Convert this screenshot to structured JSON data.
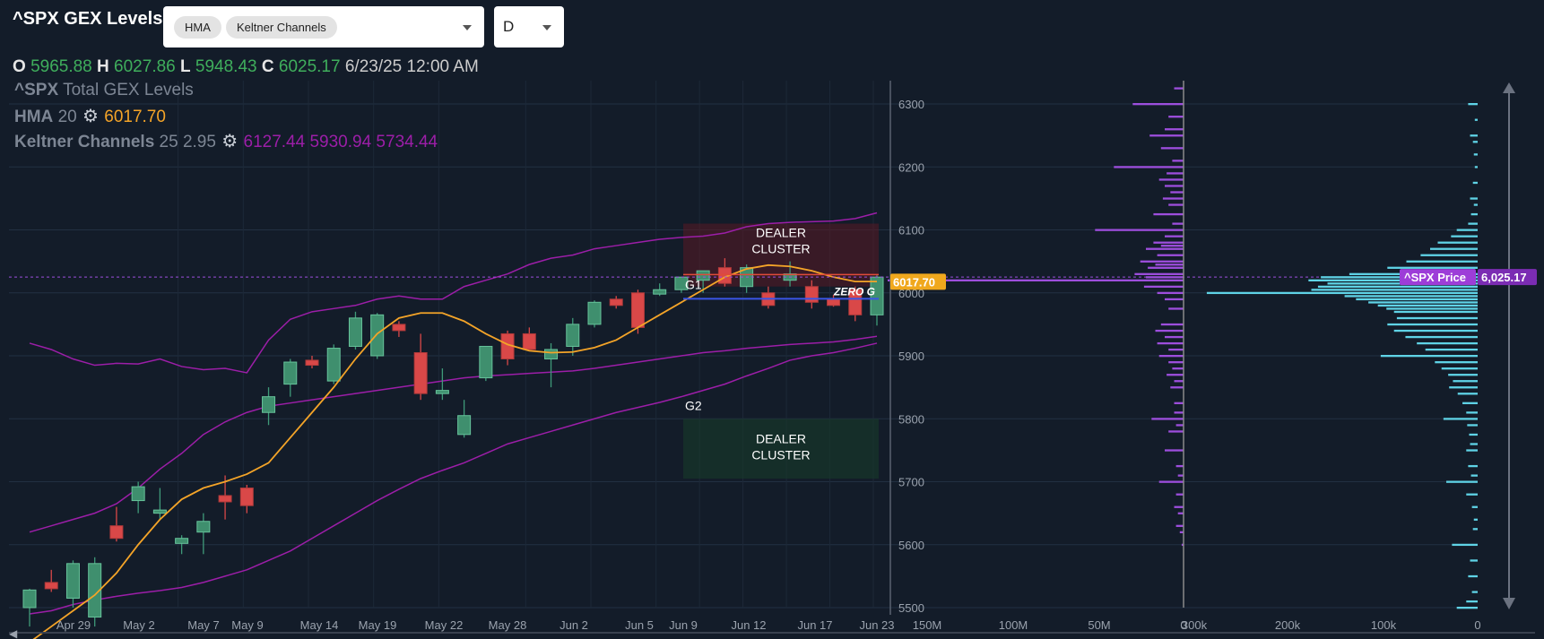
{
  "header": {
    "title": "^SPX GEX Levels",
    "indicators": [
      "HMA",
      "Keltner Channels"
    ],
    "timeframe": "D"
  },
  "ohlc": {
    "o_label": "O",
    "o": "5965.88",
    "h_label": "H",
    "h": "6027.86",
    "l_label": "L",
    "l": "5948.43",
    "c_label": "C",
    "c": "6025.17",
    "datetime": "6/23/25 12:00 AM"
  },
  "legend": {
    "line1_sym": "^SPX",
    "line1_text": "Total GEX Levels",
    "hma_label": "HMA",
    "hma_param": "20",
    "hma_value": "6017.70",
    "kc_label": "Keltner Channels",
    "kc_params": "25 2.95",
    "kc_values": "6127.44 5930.94 5734.44"
  },
  "colors": {
    "background": "#131c29",
    "up": "#3f8f6e",
    "down": "#d94848",
    "hma": "#f4a428",
    "keltner": "#9c1ea8",
    "gex_call": "#9d4edd",
    "gex_put": "#5fd3e6",
    "zero_gamma": "#3a55e6"
  },
  "annotations": {
    "dealer_cluster_upper_l1": "DEALER",
    "dealer_cluster_upper_l2": "CLUSTER",
    "dealer_cluster_lower_l1": "DEALER",
    "dealer_cluster_lower_l2": "CLUSTER",
    "g1": "G1",
    "g2": "G2",
    "zero_g": "ZERO G",
    "hma_tag": "6017.70",
    "price_tag_label": "^SPX Price",
    "price_tag_value": "6,025.17"
  },
  "chart_data": {
    "type": "candlestick",
    "title": "^SPX Total GEX Levels",
    "y_ticks": [
      5500,
      5600,
      5700,
      5800,
      5900,
      6000,
      6100,
      6200,
      6300
    ],
    "ylim": [
      5495,
      6335
    ],
    "x_ticks": [
      "Apr 29",
      "May 2",
      "May 7",
      "May 9",
      "May 14",
      "May 19",
      "May 22",
      "May 28",
      "Jun 2",
      "Jun 5",
      "Jun 9",
      "Jun 12",
      "Jun 17",
      "Jun 23"
    ],
    "candles": [
      {
        "o": 5500,
        "h": 5530,
        "l": 5470,
        "c": 5528
      },
      {
        "o": 5540,
        "h": 5560,
        "l": 5525,
        "c": 5530
      },
      {
        "o": 5515,
        "h": 5575,
        "l": 5500,
        "c": 5570
      },
      {
        "o": 5485,
        "h": 5580,
        "l": 5470,
        "c": 5570
      },
      {
        "o": 5630,
        "h": 5660,
        "l": 5605,
        "c": 5610
      },
      {
        "o": 5670,
        "h": 5700,
        "l": 5650,
        "c": 5692
      },
      {
        "o": 5650,
        "h": 5690,
        "l": 5640,
        "c": 5655
      },
      {
        "o": 5602,
        "h": 5615,
        "l": 5585,
        "c": 5610
      },
      {
        "o": 5620,
        "h": 5650,
        "l": 5585,
        "c": 5637
      },
      {
        "o": 5678,
        "h": 5710,
        "l": 5640,
        "c": 5668
      },
      {
        "o": 5690,
        "h": 5695,
        "l": 5650,
        "c": 5662
      },
      {
        "o": 5810,
        "h": 5850,
        "l": 5790,
        "c": 5835
      },
      {
        "o": 5855,
        "h": 5895,
        "l": 5835,
        "c": 5890
      },
      {
        "o": 5893,
        "h": 5900,
        "l": 5880,
        "c": 5885
      },
      {
        "o": 5860,
        "h": 5918,
        "l": 5855,
        "c": 5912
      },
      {
        "o": 5915,
        "h": 5970,
        "l": 5910,
        "c": 5960
      },
      {
        "o": 5900,
        "h": 5968,
        "l": 5895,
        "c": 5965
      },
      {
        "o": 5950,
        "h": 5955,
        "l": 5930,
        "c": 5940
      },
      {
        "o": 5905,
        "h": 5935,
        "l": 5830,
        "c": 5840
      },
      {
        "o": 5840,
        "h": 5880,
        "l": 5830,
        "c": 5845
      },
      {
        "o": 5775,
        "h": 5830,
        "l": 5770,
        "c": 5805
      },
      {
        "o": 5865,
        "h": 5915,
        "l": 5860,
        "c": 5915
      },
      {
        "o": 5935,
        "h": 5940,
        "l": 5885,
        "c": 5895
      },
      {
        "o": 5935,
        "h": 5945,
        "l": 5910,
        "c": 5910
      },
      {
        "o": 5895,
        "h": 5920,
        "l": 5850,
        "c": 5910
      },
      {
        "o": 5915,
        "h": 5960,
        "l": 5900,
        "c": 5950
      },
      {
        "o": 5950,
        "h": 5988,
        "l": 5945,
        "c": 5985
      },
      {
        "o": 5990,
        "h": 5995,
        "l": 5975,
        "c": 5980
      },
      {
        "o": 6000,
        "h": 6005,
        "l": 5935,
        "c": 5945
      },
      {
        "o": 5998,
        "h": 6015,
        "l": 5995,
        "c": 6005
      },
      {
        "o": 6005,
        "h": 6025,
        "l": 6000,
        "c": 6025
      },
      {
        "o": 6020,
        "h": 6035,
        "l": 6000,
        "c": 6035
      },
      {
        "o": 6040,
        "h": 6055,
        "l": 6010,
        "c": 6015
      },
      {
        "o": 6010,
        "h": 6045,
        "l": 6000,
        "c": 6040
      },
      {
        "o": 6000,
        "h": 6010,
        "l": 5975,
        "c": 5980
      },
      {
        "o": 6020,
        "h": 6050,
        "l": 6010,
        "c": 6030
      },
      {
        "o": 6010,
        "h": 6020,
        "l": 5975,
        "c": 5985
      },
      {
        "o": 5990,
        "h": 5997,
        "l": 5978,
        "c": 5980
      },
      {
        "o": 6005,
        "h": 6010,
        "l": 5955,
        "c": 5965
      },
      {
        "o": 5965,
        "h": 6028,
        "l": 5948,
        "c": 6025
      }
    ],
    "hma": [
      5445,
      5470,
      5495,
      5520,
      5555,
      5600,
      5640,
      5672,
      5690,
      5700,
      5712,
      5730,
      5770,
      5810,
      5850,
      5895,
      5935,
      5960,
      5968,
      5968,
      5955,
      5935,
      5918,
      5908,
      5905,
      5906,
      5913,
      5925,
      5945,
      5965,
      5985,
      6005,
      6025,
      6038,
      6044,
      6042,
      6035,
      6025,
      6018,
      6018
    ],
    "keltner_upper": [
      5920,
      5910,
      5895,
      5885,
      5888,
      5887,
      5895,
      5883,
      5878,
      5880,
      5873,
      5925,
      5958,
      5970,
      5975,
      5980,
      5990,
      5995,
      5990,
      5990,
      6010,
      6020,
      6030,
      6045,
      6055,
      6060,
      6070,
      6075,
      6080,
      6085,
      6088,
      6090,
      6095,
      6105,
      6110,
      6112,
      6113,
      6114,
      6118,
      6127
    ],
    "keltner_middle": [
      5620,
      5630,
      5640,
      5650,
      5665,
      5690,
      5720,
      5745,
      5775,
      5795,
      5810,
      5820,
      5825,
      5830,
      5835,
      5840,
      5845,
      5850,
      5855,
      5860,
      5865,
      5868,
      5870,
      5872,
      5874,
      5876,
      5880,
      5885,
      5890,
      5895,
      5900,
      5905,
      5908,
      5912,
      5915,
      5918,
      5920,
      5922,
      5926,
      5931
    ],
    "keltner_lower": [
      5490,
      5495,
      5505,
      5512,
      5518,
      5523,
      5527,
      5532,
      5540,
      5550,
      5560,
      5575,
      5590,
      5610,
      5630,
      5650,
      5670,
      5688,
      5705,
      5718,
      5730,
      5745,
      5760,
      5770,
      5780,
      5790,
      5800,
      5810,
      5818,
      5826,
      5835,
      5845,
      5855,
      5868,
      5880,
      5893,
      5900,
      5905,
      5912,
      5920
    ],
    "levels": {
      "hma_last": 6017.7,
      "price_last": 6025.17,
      "zero_gamma": 6002,
      "g1": 6003,
      "g2": 5800
    },
    "dealer_clusters": [
      {
        "from": 6010,
        "to": 6110
      },
      {
        "from": 5705,
        "to": 5800
      }
    ],
    "gex_panel": {
      "x_ticks": [
        "150M",
        "100M",
        "50M",
        "0"
      ],
      "xlim": [
        150,
        0
      ],
      "bars": [
        {
          "strike": 6325,
          "v": 5
        },
        {
          "strike": 6300,
          "v": 27
        },
        {
          "strike": 6280,
          "v": 8
        },
        {
          "strike": 6260,
          "v": 10
        },
        {
          "strike": 6250,
          "v": 18
        },
        {
          "strike": 6230,
          "v": 12
        },
        {
          "strike": 6210,
          "v": 6
        },
        {
          "strike": 6200,
          "v": 37
        },
        {
          "strike": 6190,
          "v": 9
        },
        {
          "strike": 6180,
          "v": 13
        },
        {
          "strike": 6170,
          "v": 10
        },
        {
          "strike": 6160,
          "v": 7
        },
        {
          "strike": 6150,
          "v": 11
        },
        {
          "strike": 6140,
          "v": 8
        },
        {
          "strike": 6125,
          "v": 16
        },
        {
          "strike": 6110,
          "v": 6
        },
        {
          "strike": 6100,
          "v": 47
        },
        {
          "strike": 6090,
          "v": 10
        },
        {
          "strike": 6080,
          "v": 16
        },
        {
          "strike": 6075,
          "v": 12
        },
        {
          "strike": 6070,
          "v": 20
        },
        {
          "strike": 6060,
          "v": 14
        },
        {
          "strike": 6050,
          "v": 23
        },
        {
          "strike": 6045,
          "v": 15
        },
        {
          "strike": 6040,
          "v": 19
        },
        {
          "strike": 6030,
          "v": 26
        },
        {
          "strike": 6025,
          "v": 20
        },
        {
          "strike": 6020,
          "v": 220
        },
        {
          "strike": 6010,
          "v": 21
        },
        {
          "strike": 6000,
          "v": 14
        },
        {
          "strike": 5990,
          "v": 10
        },
        {
          "strike": 5975,
          "v": 8
        },
        {
          "strike": 5950,
          "v": 12
        },
        {
          "strike": 5940,
          "v": 15
        },
        {
          "strike": 5930,
          "v": 10
        },
        {
          "strike": 5920,
          "v": 14
        },
        {
          "strike": 5910,
          "v": 8
        },
        {
          "strike": 5900,
          "v": 13
        },
        {
          "strike": 5890,
          "v": 8
        },
        {
          "strike": 5880,
          "v": 6
        },
        {
          "strike": 5870,
          "v": 9
        },
        {
          "strike": 5860,
          "v": 5
        },
        {
          "strike": 5850,
          "v": 7
        },
        {
          "strike": 5825,
          "v": 5
        },
        {
          "strike": 5810,
          "v": 5
        },
        {
          "strike": 5800,
          "v": 17
        },
        {
          "strike": 5790,
          "v": 4
        },
        {
          "strike": 5780,
          "v": 8
        },
        {
          "strike": 5750,
          "v": 10
        },
        {
          "strike": 5725,
          "v": 4
        },
        {
          "strike": 5710,
          "v": 3
        },
        {
          "strike": 5700,
          "v": 13
        },
        {
          "strike": 5680,
          "v": 4
        },
        {
          "strike": 5660,
          "v": 5
        },
        {
          "strike": 5650,
          "v": 3
        },
        {
          "strike": 5630,
          "v": 4
        },
        {
          "strike": 5620,
          "v": 2
        },
        {
          "strike": 5600,
          "v": 1
        }
      ]
    },
    "profile_panel": {
      "x_ticks": [
        "300k",
        "200k",
        "100k",
        "0"
      ],
      "xlim": [
        300,
        0
      ],
      "bars": [
        {
          "strike": 6300,
          "v": 10
        },
        {
          "strike": 6275,
          "v": 3
        },
        {
          "strike": 6250,
          "v": 8
        },
        {
          "strike": 6240,
          "v": 5
        },
        {
          "strike": 6220,
          "v": 4
        },
        {
          "strike": 6200,
          "v": 3
        },
        {
          "strike": 6175,
          "v": 5
        },
        {
          "strike": 6150,
          "v": 8
        },
        {
          "strike": 6140,
          "v": 4
        },
        {
          "strike": 6125,
          "v": 7
        },
        {
          "strike": 6110,
          "v": 10
        },
        {
          "strike": 6100,
          "v": 22
        },
        {
          "strike": 6090,
          "v": 28
        },
        {
          "strike": 6080,
          "v": 42
        },
        {
          "strike": 6070,
          "v": 50
        },
        {
          "strike": 6060,
          "v": 60
        },
        {
          "strike": 6050,
          "v": 75
        },
        {
          "strike": 6040,
          "v": 95
        },
        {
          "strike": 6030,
          "v": 135
        },
        {
          "strike": 6025,
          "v": 165
        },
        {
          "strike": 6020,
          "v": 178
        },
        {
          "strike": 6015,
          "v": 158
        },
        {
          "strike": 6010,
          "v": 168
        },
        {
          "strike": 6005,
          "v": 175
        },
        {
          "strike": 6000,
          "v": 285
        },
        {
          "strike": 5995,
          "v": 140
        },
        {
          "strike": 5990,
          "v": 128
        },
        {
          "strike": 5985,
          "v": 115
        },
        {
          "strike": 5980,
          "v": 105
        },
        {
          "strike": 5975,
          "v": 96
        },
        {
          "strike": 5970,
          "v": 88
        },
        {
          "strike": 5960,
          "v": 85
        },
        {
          "strike": 5950,
          "v": 95
        },
        {
          "strike": 5940,
          "v": 88
        },
        {
          "strike": 5930,
          "v": 76
        },
        {
          "strike": 5920,
          "v": 64
        },
        {
          "strike": 5910,
          "v": 55
        },
        {
          "strike": 5900,
          "v": 102
        },
        {
          "strike": 5890,
          "v": 45
        },
        {
          "strike": 5880,
          "v": 38
        },
        {
          "strike": 5870,
          "v": 31
        },
        {
          "strike": 5860,
          "v": 26
        },
        {
          "strike": 5850,
          "v": 30
        },
        {
          "strike": 5840,
          "v": 21
        },
        {
          "strike": 5825,
          "v": 16
        },
        {
          "strike": 5810,
          "v": 12
        },
        {
          "strike": 5800,
          "v": 36
        },
        {
          "strike": 5790,
          "v": 11
        },
        {
          "strike": 5775,
          "v": 9
        },
        {
          "strike": 5760,
          "v": 8
        },
        {
          "strike": 5750,
          "v": 12
        },
        {
          "strike": 5725,
          "v": 10
        },
        {
          "strike": 5710,
          "v": 7
        },
        {
          "strike": 5700,
          "v": 33
        },
        {
          "strike": 5680,
          "v": 12
        },
        {
          "strike": 5660,
          "v": 6
        },
        {
          "strike": 5640,
          "v": 4
        },
        {
          "strike": 5625,
          "v": 5
        },
        {
          "strike": 5600,
          "v": 27
        },
        {
          "strike": 5575,
          "v": 8
        },
        {
          "strike": 5550,
          "v": 10
        },
        {
          "strike": 5525,
          "v": 6
        },
        {
          "strike": 5510,
          "v": 12
        },
        {
          "strike": 5500,
          "v": 22
        }
      ]
    }
  }
}
